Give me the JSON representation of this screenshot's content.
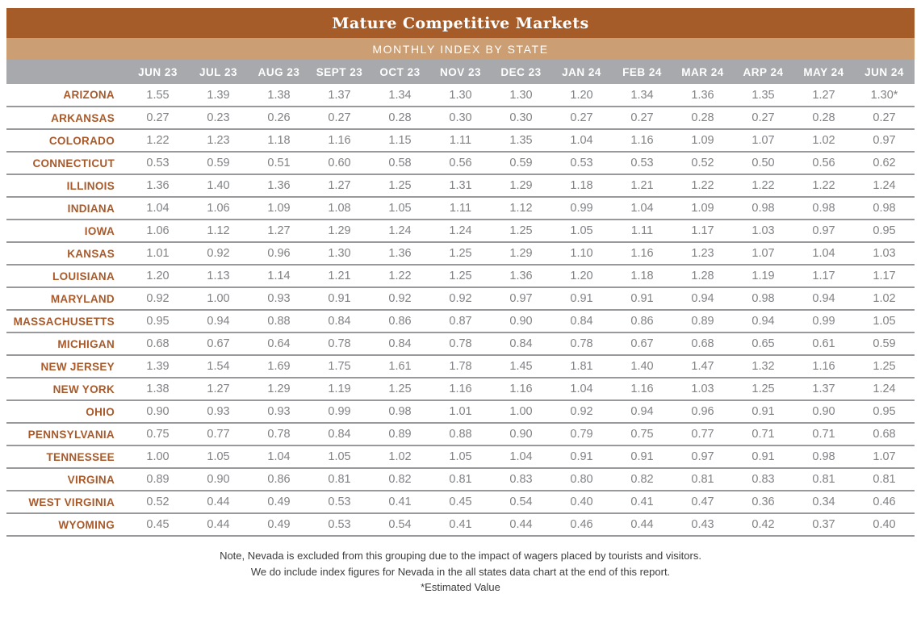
{
  "colors": {
    "title_bar": "#a55c28",
    "subtitle_bar": "#cc9e73",
    "header_bar": "#a7a9ac",
    "state_label": "#a85a2b",
    "value_text": "#808285",
    "divider": "#97999c",
    "note_text": "#3d3d3d"
  },
  "chart_data": {
    "type": "table",
    "title": "Mature Competitive Markets",
    "subtitle": "MONTHLY INDEX BY STATE",
    "columns": [
      "JUN 23",
      "JUL 23",
      "AUG 23",
      "SEPT 23",
      "OCT 23",
      "NOV 23",
      "DEC 23",
      "JAN 24",
      "FEB 24",
      "MAR 24",
      "ARP 24",
      "MAY 24",
      "JUN 24"
    ],
    "rows": [
      {
        "state": "ARIZONA",
        "values": [
          "1.55",
          "1.39",
          "1.38",
          "1.37",
          "1.34",
          "1.30",
          "1.30",
          "1.20",
          "1.34",
          "1.36",
          "1.35",
          "1.27",
          "1.30*"
        ]
      },
      {
        "state": "ARKANSAS",
        "values": [
          "0.27",
          "0.23",
          "0.26",
          "0.27",
          "0.28",
          "0.30",
          "0.30",
          "0.27",
          "0.27",
          "0.28",
          "0.27",
          "0.28",
          "0.27"
        ]
      },
      {
        "state": "COLORADO",
        "values": [
          "1.22",
          "1.23",
          "1.18",
          "1.16",
          "1.15",
          "1.11",
          "1.35",
          "1.04",
          "1.16",
          "1.09",
          "1.07",
          "1.02",
          "0.97"
        ]
      },
      {
        "state": "CONNECTICUT",
        "values": [
          "0.53",
          "0.59",
          "0.51",
          "0.60",
          "0.58",
          "0.56",
          "0.59",
          "0.53",
          "0.53",
          "0.52",
          "0.50",
          "0.56",
          "0.62"
        ]
      },
      {
        "state": "ILLINOIS",
        "values": [
          "1.36",
          "1.40",
          "1.36",
          "1.27",
          "1.25",
          "1.31",
          "1.29",
          "1.18",
          "1.21",
          "1.22",
          "1.22",
          "1.22",
          "1.24"
        ]
      },
      {
        "state": "INDIANA",
        "values": [
          "1.04",
          "1.06",
          "1.09",
          "1.08",
          "1.05",
          "1.11",
          "1.12",
          "0.99",
          "1.04",
          "1.09",
          "0.98",
          "0.98",
          "0.98"
        ]
      },
      {
        "state": "IOWA",
        "values": [
          "1.06",
          "1.12",
          "1.27",
          "1.29",
          "1.24",
          "1.24",
          "1.25",
          "1.05",
          "1.11",
          "1.17",
          "1.03",
          "0.97",
          "0.95"
        ]
      },
      {
        "state": "KANSAS",
        "values": [
          "1.01",
          "0.92",
          "0.96",
          "1.30",
          "1.36",
          "1.25",
          "1.29",
          "1.10",
          "1.16",
          "1.23",
          "1.07",
          "1.04",
          "1.03"
        ]
      },
      {
        "state": "LOUISIANA",
        "values": [
          "1.20",
          "1.13",
          "1.14",
          "1.21",
          "1.22",
          "1.25",
          "1.36",
          "1.20",
          "1.18",
          "1.28",
          "1.19",
          "1.17",
          "1.17"
        ]
      },
      {
        "state": "MARYLAND",
        "values": [
          "0.92",
          "1.00",
          "0.93",
          "0.91",
          "0.92",
          "0.92",
          "0.97",
          "0.91",
          "0.91",
          "0.94",
          "0.98",
          "0.94",
          "1.02"
        ]
      },
      {
        "state": "MASSACHUSETTS",
        "values": [
          "0.95",
          "0.94",
          "0.88",
          "0.84",
          "0.86",
          "0.87",
          "0.90",
          "0.84",
          "0.86",
          "0.89",
          "0.94",
          "0.99",
          "1.05"
        ]
      },
      {
        "state": "MICHIGAN",
        "values": [
          "0.68",
          "0.67",
          "0.64",
          "0.78",
          "0.84",
          "0.78",
          "0.84",
          "0.78",
          "0.67",
          "0.68",
          "0.65",
          "0.61",
          "0.59"
        ]
      },
      {
        "state": "NEW JERSEY",
        "values": [
          "1.39",
          "1.54",
          "1.69",
          "1.75",
          "1.61",
          "1.78",
          "1.45",
          "1.81",
          "1.40",
          "1.47",
          "1.32",
          "1.16",
          "1.25"
        ]
      },
      {
        "state": "NEW YORK",
        "values": [
          "1.38",
          "1.27",
          "1.29",
          "1.19",
          "1.25",
          "1.16",
          "1.16",
          "1.04",
          "1.16",
          "1.03",
          "1.25",
          "1.37",
          "1.24"
        ]
      },
      {
        "state": "OHIO",
        "values": [
          "0.90",
          "0.93",
          "0.93",
          "0.99",
          "0.98",
          "1.01",
          "1.00",
          "0.92",
          "0.94",
          "0.96",
          "0.91",
          "0.90",
          "0.95"
        ]
      },
      {
        "state": "PENNSYLVANIA",
        "values": [
          "0.75",
          "0.77",
          "0.78",
          "0.84",
          "0.89",
          "0.88",
          "0.90",
          "0.79",
          "0.75",
          "0.77",
          "0.71",
          "0.71",
          "0.68"
        ]
      },
      {
        "state": "TENNESSEE",
        "values": [
          "1.00",
          "1.05",
          "1.04",
          "1.05",
          "1.02",
          "1.05",
          "1.04",
          "0.91",
          "0.91",
          "0.97",
          "0.91",
          "0.98",
          "1.07"
        ]
      },
      {
        "state": "VIRGINA",
        "values": [
          "0.89",
          "0.90",
          "0.86",
          "0.81",
          "0.82",
          "0.81",
          "0.83",
          "0.80",
          "0.82",
          "0.81",
          "0.83",
          "0.81",
          "0.81"
        ]
      },
      {
        "state": "WEST VIRGINIA",
        "values": [
          "0.52",
          "0.44",
          "0.49",
          "0.53",
          "0.41",
          "0.45",
          "0.54",
          "0.40",
          "0.41",
          "0.47",
          "0.36",
          "0.34",
          "0.46"
        ]
      },
      {
        "state": "WYOMING",
        "values": [
          "0.45",
          "0.44",
          "0.49",
          "0.53",
          "0.54",
          "0.41",
          "0.44",
          "0.46",
          "0.44",
          "0.43",
          "0.42",
          "0.37",
          "0.40"
        ]
      }
    ],
    "notes": [
      "Note, Nevada is excluded from this grouping due to the impact of wagers placed by tourists and visitors.",
      "We do include index figures for Nevada in the all states data chart at the end of this report.",
      "*Estimated Value"
    ]
  }
}
